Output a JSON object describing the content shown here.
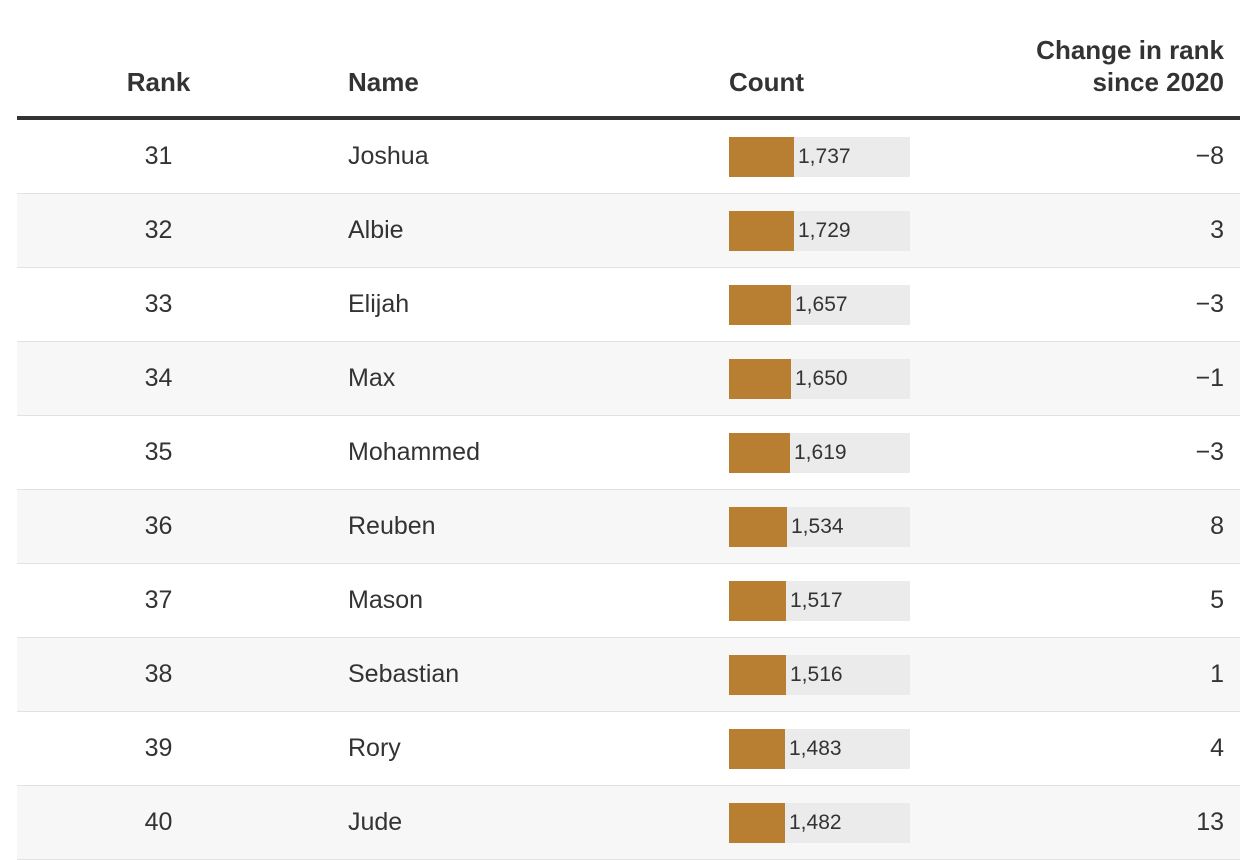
{
  "colors": {
    "bar": "#b87f33",
    "track": "#ebebeb",
    "text": "#333333",
    "alt_row": "#f7f7f7"
  },
  "chart_data": {
    "type": "table",
    "columns": [
      "Rank",
      "Name",
      "Count",
      "Change in rank since 2020"
    ],
    "header": {
      "rank": "Rank",
      "name": "Name",
      "count": "Count",
      "change_line1": "Change in rank",
      "change_line2": "since 2020"
    },
    "bar_max": 4800,
    "rows": [
      {
        "rank": "31",
        "name": "Joshua",
        "count": 1737,
        "count_label": "1,737",
        "change": "−8"
      },
      {
        "rank": "32",
        "name": "Albie",
        "count": 1729,
        "count_label": "1,729",
        "change": "3"
      },
      {
        "rank": "33",
        "name": "Elijah",
        "count": 1657,
        "count_label": "1,657",
        "change": "−3"
      },
      {
        "rank": "34",
        "name": "Max",
        "count": 1650,
        "count_label": "1,650",
        "change": "−1"
      },
      {
        "rank": "35",
        "name": "Mohammed",
        "count": 1619,
        "count_label": "1,619",
        "change": "−3"
      },
      {
        "rank": "36",
        "name": "Reuben",
        "count": 1534,
        "count_label": "1,534",
        "change": "8"
      },
      {
        "rank": "37",
        "name": "Mason",
        "count": 1517,
        "count_label": "1,517",
        "change": "5"
      },
      {
        "rank": "38",
        "name": "Sebastian",
        "count": 1516,
        "count_label": "1,516",
        "change": "1"
      },
      {
        "rank": "39",
        "name": "Rory",
        "count": 1483,
        "count_label": "1,483",
        "change": "4"
      },
      {
        "rank": "40",
        "name": "Jude",
        "count": 1482,
        "count_label": "1,482",
        "change": "13"
      }
    ]
  }
}
